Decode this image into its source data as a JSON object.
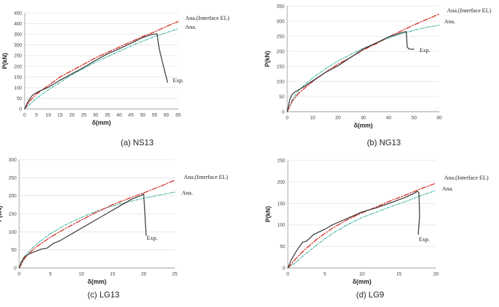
{
  "colors": {
    "exp": "#3a3a3a",
    "interface_el": "#d4322a",
    "ana": "#2fae9b",
    "grid": "#e3e3e3",
    "axis": "#9a9a9a"
  },
  "chart_data": [
    {
      "type": "line",
      "caption": "(a) NS13",
      "xlabel": "δ(mm)",
      "ylabel": "P(kN)",
      "xlim": [
        0,
        65
      ],
      "ylim": [
        0,
        450
      ],
      "xticks": [
        0,
        5,
        10,
        15,
        20,
        25,
        30,
        35,
        40,
        45,
        50,
        55,
        60,
        65
      ],
      "yticks": [
        0,
        50,
        100,
        150,
        200,
        250,
        300,
        350,
        400,
        450
      ],
      "grid": "horizontal",
      "series": [
        {
          "name": "Exp.",
          "style": "exp",
          "x": [
            0,
            1,
            2,
            3,
            4,
            6,
            8,
            10,
            15,
            20,
            25,
            30,
            35,
            40,
            45,
            50,
            54,
            56,
            57,
            59,
            60.5
          ],
          "y": [
            0,
            25,
            45,
            60,
            70,
            82,
            92,
            102,
            135,
            165,
            195,
            228,
            258,
            282,
            308,
            335,
            350,
            352,
            280,
            190,
            125
          ]
        },
        {
          "name": "Ana.(Interface EL)",
          "style": "interface_el",
          "x": [
            0,
            2,
            5,
            10,
            15,
            20,
            25,
            30,
            35,
            40,
            45,
            50,
            55,
            60,
            65
          ],
          "y": [
            0,
            35,
            70,
            110,
            150,
            180,
            210,
            240,
            265,
            290,
            315,
            340,
            362,
            387,
            410
          ]
        },
        {
          "name": "Ana.",
          "style": "ana",
          "x": [
            0,
            5,
            10,
            15,
            20,
            25,
            30,
            35,
            40,
            45,
            50,
            55,
            60,
            65
          ],
          "y": [
            0,
            50,
            90,
            125,
            160,
            190,
            220,
            245,
            270,
            295,
            318,
            340,
            358,
            376
          ]
        }
      ]
    },
    {
      "type": "line",
      "caption": "(b) NG13",
      "xlabel": "δ(mm)",
      "ylabel": "P(kN)",
      "xlim": [
        0,
        60
      ],
      "ylim": [
        0,
        350
      ],
      "xticks": [
        0,
        10,
        20,
        30,
        40,
        50,
        60
      ],
      "yticks": [
        0,
        50,
        100,
        150,
        200,
        250,
        300,
        350
      ],
      "grid": "horizontal",
      "series": [
        {
          "name": "Exp.",
          "style": "exp",
          "x": [
            0,
            0.5,
            1,
            2,
            3,
            5,
            7,
            10,
            15,
            20,
            25,
            30,
            35,
            40,
            45,
            47,
            47.3,
            48,
            50
          ],
          "y": [
            0,
            20,
            40,
            58,
            65,
            75,
            85,
            102,
            130,
            152,
            180,
            208,
            228,
            248,
            262,
            266,
            215,
            208,
            207
          ]
        },
        {
          "name": "Ana.(Interface EL)",
          "style": "interface_el",
          "x": [
            0,
            2,
            5,
            10,
            15,
            20,
            25,
            30,
            35,
            40,
            45,
            50,
            55,
            60
          ],
          "y": [
            0,
            35,
            65,
            100,
            130,
            158,
            180,
            205,
            225,
            248,
            268,
            288,
            306,
            324
          ]
        },
        {
          "name": "Ana.",
          "style": "ana",
          "x": [
            0,
            2,
            5,
            10,
            15,
            20,
            25,
            30,
            35,
            40,
            45,
            50,
            55,
            60
          ],
          "y": [
            0,
            40,
            75,
            112,
            142,
            168,
            190,
            210,
            228,
            244,
            258,
            270,
            280,
            287
          ]
        }
      ]
    },
    {
      "type": "line",
      "caption": "(c) LG13",
      "xlabel": "δ(mm)",
      "ylabel": "P(kN)",
      "xlim": [
        0,
        25
      ],
      "ylim": [
        0,
        300
      ],
      "xticks": [
        0,
        5,
        10,
        15,
        20,
        25
      ],
      "yticks": [
        0,
        50,
        100,
        150,
        200,
        250,
        300
      ],
      "grid": "horizontal",
      "series": [
        {
          "name": "Exp.",
          "style": "exp",
          "x": [
            0,
            0.3,
            0.8,
            1.5,
            2.5,
            3.5,
            4.5,
            5.5,
            6.5,
            8,
            10,
            12,
            14,
            16,
            18,
            19.5,
            20,
            20.2,
            20.4
          ],
          "y": [
            0,
            15,
            30,
            38,
            45,
            52,
            55,
            68,
            75,
            90,
            110,
            130,
            150,
            170,
            190,
            200,
            205,
            150,
            90
          ]
        },
        {
          "name": "Ana.(Interface EL)",
          "style": "interface_el",
          "x": [
            0,
            1,
            2.5,
            5,
            7.5,
            10,
            12.5,
            15,
            17.5,
            20,
            22.5,
            25
          ],
          "y": [
            0,
            30,
            55,
            85,
            110,
            133,
            155,
            175,
            192,
            208,
            225,
            243
          ]
        },
        {
          "name": "Ana.",
          "style": "ana",
          "x": [
            0,
            1,
            2.5,
            5,
            7.5,
            10,
            12.5,
            15,
            17.5,
            20,
            22.5,
            25
          ],
          "y": [
            0,
            35,
            62,
            95,
            120,
            140,
            158,
            172,
            183,
            193,
            202,
            210
          ]
        }
      ]
    },
    {
      "type": "line",
      "caption": "(d) LG9",
      "xlabel": "δ(mm)",
      "ylabel": "P(kN)",
      "xlim": [
        0,
        20
      ],
      "ylim": [
        0,
        250
      ],
      "xticks": [
        0,
        5,
        10,
        15,
        20
      ],
      "yticks": [
        0,
        50,
        100,
        150,
        200,
        250
      ],
      "grid": "horizontal",
      "series": [
        {
          "name": "Exp.",
          "style": "exp",
          "x": [
            0,
            0.5,
            1,
            1.5,
            2,
            2.5,
            3,
            3.5,
            4,
            5,
            6,
            8,
            10,
            12,
            14,
            16,
            17,
            17.5,
            17.7,
            17.8,
            17.6
          ],
          "y": [
            0,
            20,
            35,
            48,
            60,
            62,
            70,
            78,
            82,
            90,
            100,
            115,
            130,
            140,
            152,
            165,
            173,
            178,
            175,
            120,
            78
          ]
        },
        {
          "name": "Ana.(Interface EL)",
          "style": "interface_el",
          "x": [
            0,
            1,
            2,
            4,
            6,
            8,
            10,
            12,
            14,
            16,
            18,
            20
          ],
          "y": [
            0,
            20,
            38,
            68,
            92,
            112,
            128,
            142,
            157,
            170,
            184,
            197
          ]
        },
        {
          "name": "Ana.",
          "style": "ana",
          "x": [
            0,
            1,
            2,
            4,
            6,
            8,
            10,
            12,
            14,
            16,
            18,
            20
          ],
          "y": [
            0,
            12,
            27,
            55,
            80,
            100,
            117,
            130,
            143,
            155,
            168,
            180
          ]
        }
      ]
    }
  ]
}
